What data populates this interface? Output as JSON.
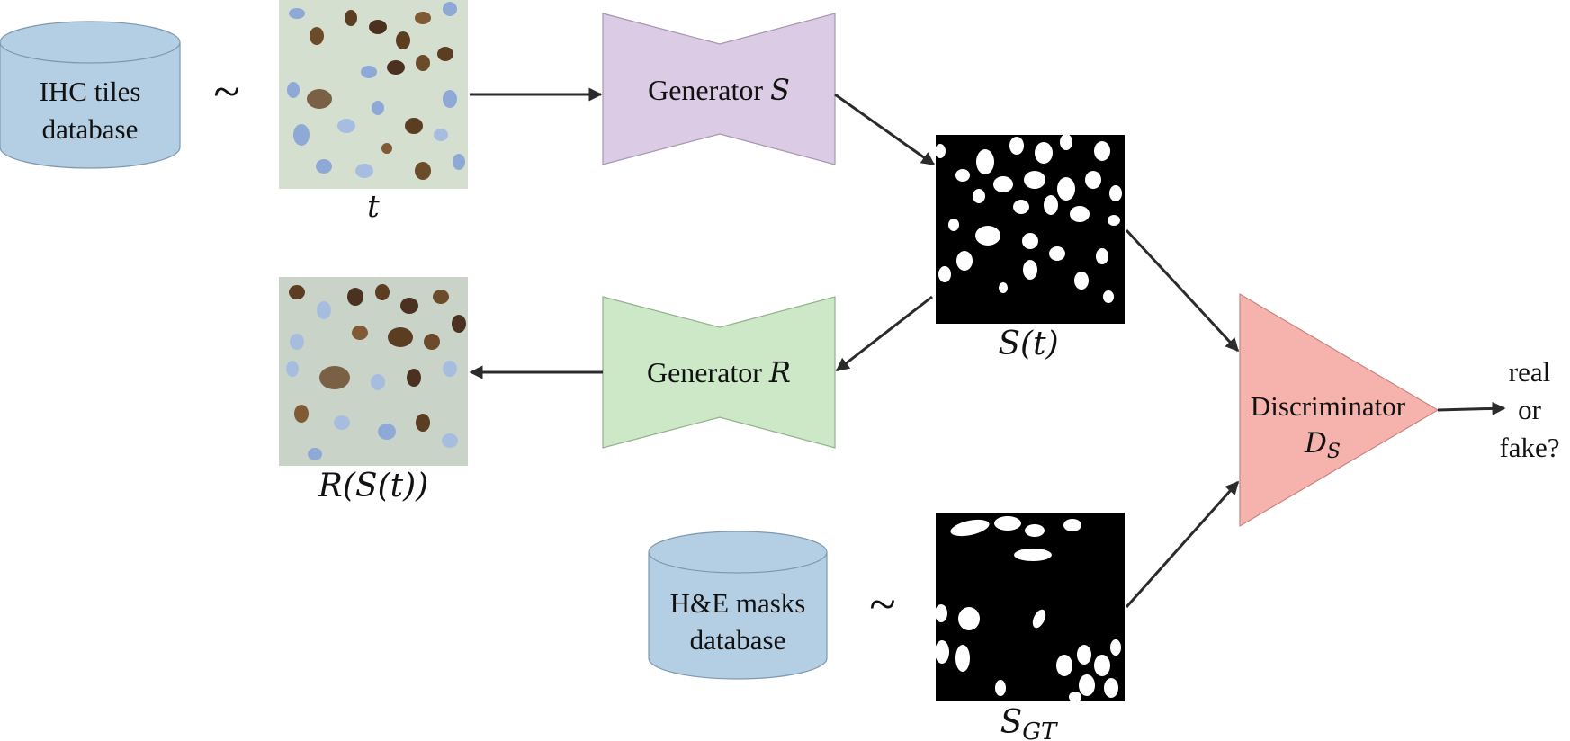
{
  "nodes": {
    "ihc_db": {
      "line1": "IHC tiles",
      "line2": "database",
      "fill": "#b4cfe3"
    },
    "he_db": {
      "line1": "H&E masks",
      "line2": "database",
      "fill": "#b4cfe3"
    },
    "gen_s": {
      "prefix": "Generator ",
      "var": "S",
      "fill": "#dccbe4"
    },
    "gen_r": {
      "prefix": "Generator ",
      "var": "R",
      "fill": "#cde8c7"
    },
    "disc": {
      "text": "Discriminator",
      "var": "D",
      "sub": "S",
      "fill": "#f6b2ac"
    }
  },
  "symbols": {
    "sample_top": "~",
    "sample_bottom": "~"
  },
  "images": {
    "tile_t": {
      "caption": "t",
      "kind": "IHC tile"
    },
    "tile_rst": {
      "caption": "R(S(t))",
      "kind": "reconstructed IHC tile"
    },
    "mask_st": {
      "caption": "S(t)",
      "kind": "binary mask"
    },
    "mask_sgt": {
      "caption_var": "S",
      "caption_sub": "GT",
      "kind": "binary mask"
    }
  },
  "output": {
    "line1": "real",
    "line2": "or",
    "line3": "fake?"
  }
}
